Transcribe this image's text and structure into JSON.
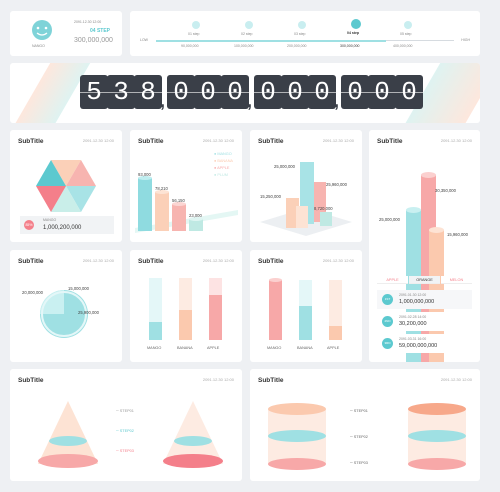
{
  "top_left": {
    "date": "2091.12.30 12:00",
    "step": "04 STEP",
    "amount": "300,000,000",
    "caption": "NANGO"
  },
  "timeline": {
    "start": "LOW",
    "end": "HIGH",
    "steps": [
      {
        "label": "01 step",
        "value": "90,000,000"
      },
      {
        "label": "02 step",
        "value": "100,000,000"
      },
      {
        "label": "03 step",
        "value": "200,000,000"
      },
      {
        "label": "04 step",
        "value": "300,000,000"
      },
      {
        "label": "05 step",
        "value": "400,000,000"
      }
    ]
  },
  "big_counter": {
    "digits": [
      "5",
      "3",
      "8",
      "0",
      "0",
      "0",
      "0",
      "0",
      "0",
      "0",
      "0",
      "0"
    ]
  },
  "cards": {
    "subtitle": "SubTitle",
    "date": "2091.12.30 12:00"
  },
  "hex_card": {
    "badge": "85%",
    "label": "MANGO",
    "value": "1,000,200,000"
  },
  "bar3d_card": {
    "legend": [
      "MANGO",
      "BANANA",
      "APPLE",
      "PLUM"
    ],
    "values": [
      "93,000",
      "78,210",
      "56,150",
      "23,000"
    ]
  },
  "grid_card": {
    "values": [
      "25,000,000",
      "25,960,000",
      "15,250,000",
      "8,720,000"
    ]
  },
  "cyl_card": {
    "values": [
      "30,350,000",
      "25,000,000",
      "15,960,000"
    ]
  },
  "tabs_card": {
    "tabs": [
      "APPLE",
      "ORANGE",
      "MELON"
    ],
    "rows": [
      {
        "badge": "1ST",
        "date": "2091.01.30 12:00",
        "value": "1,000,000,000"
      },
      {
        "badge": "2ND",
        "date": "2091.02.28 14:00",
        "value": "30,200,000"
      },
      {
        "badge": "3RD",
        "date": "2091.03.31 16:00",
        "value": "59,000,000,000"
      }
    ]
  },
  "sphere_card": {
    "values": [
      "20,000,000",
      "15,000,000",
      "25,900,000"
    ]
  },
  "tube_card": {
    "labels": [
      "MANGO",
      "BANANA",
      "APPLE"
    ]
  },
  "tube_card2": {
    "labels": [
      "MANGO",
      "BANANA",
      "APPLE"
    ]
  },
  "cone_card": {
    "steps": [
      "STEP01",
      "STEP02",
      "STEP03"
    ]
  },
  "cyl_stack_card": {
    "steps": [
      "STEP01",
      "STEP02",
      "STEP03"
    ]
  },
  "colors": {
    "teal": "#5cc9cf",
    "pink": "#f7a8a8",
    "peach": "#fbd0b8",
    "mint": "#bfe9e3",
    "dark": "#3a3f48"
  }
}
